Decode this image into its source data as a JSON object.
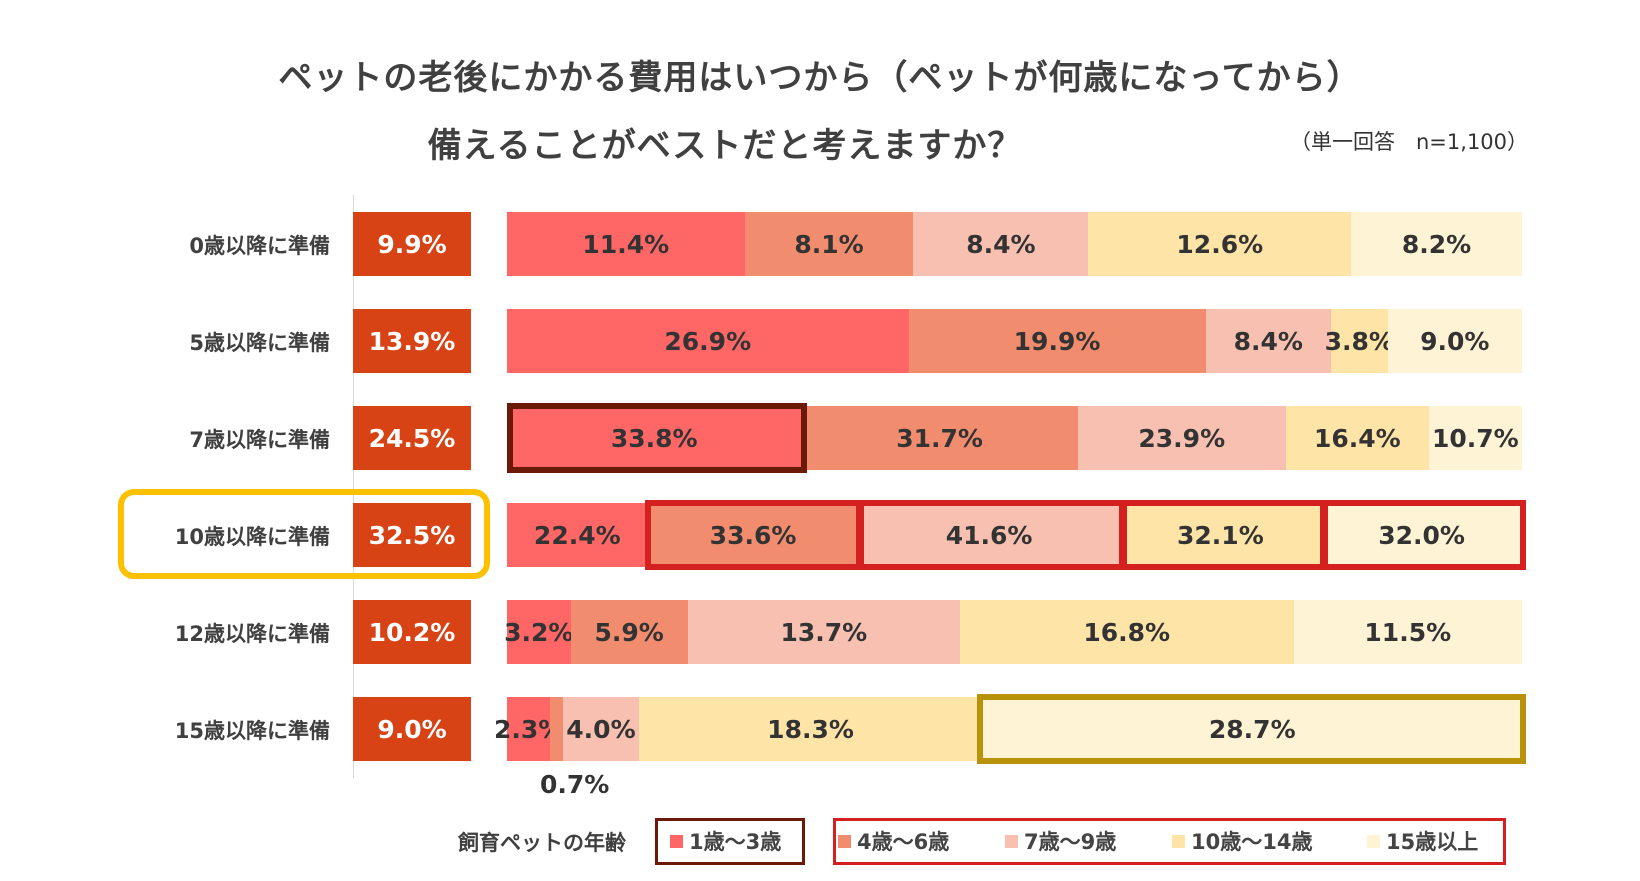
{
  "chart_data": {
    "type": "bar",
    "title_line1": "ペットの老後にかかる費用はいつから（ペットが何歳になってから）",
    "title_line2": "備えることがベストだと考えますか？",
    "note": "（単一回答　n=1,100）",
    "categories": [
      "0歳以降に準備",
      "5歳以降に準備",
      "7歳以降に準備",
      "10歳以降に準備",
      "12歳以降に準備",
      "15歳以降に準備"
    ],
    "overall": {
      "values": [
        9.9,
        13.9,
        24.5,
        32.5,
        10.2,
        9.0
      ],
      "labels": [
        "9.9%",
        "13.9%",
        "24.5%",
        "32.5%",
        "10.2%",
        "9.0%"
      ]
    },
    "legend_title": "飼育ペットの年齢",
    "series": [
      {
        "name": "1歳〜3歳",
        "color": "#FF6666",
        "values": [
          11.4,
          26.9,
          33.8,
          22.4,
          3.2,
          2.3
        ],
        "labels": [
          "11.4%",
          "26.9%",
          "33.8%",
          "22.4%",
          "3.2%",
          "2.3%"
        ]
      },
      {
        "name": "4歳〜6歳",
        "color": "#F28C6E",
        "values": [
          8.1,
          19.9,
          31.7,
          33.6,
          5.9,
          0.7
        ],
        "labels": [
          "8.1%",
          "19.9%",
          "31.7%",
          "33.6%",
          "5.9%",
          "0.7%"
        ]
      },
      {
        "name": "7歳〜9歳",
        "color": "#F8C0B0",
        "values": [
          8.4,
          8.4,
          23.9,
          41.6,
          13.7,
          4.0
        ],
        "labels": [
          "8.4%",
          "8.4%",
          "23.9%",
          "41.6%",
          "13.7%",
          "4.0%"
        ]
      },
      {
        "name": "10歳〜14歳",
        "color": "#FFE4A8",
        "values": [
          12.6,
          3.8,
          16.4,
          32.1,
          16.8,
          18.3
        ],
        "labels": [
          "12.6%",
          "3.8%",
          "16.4%",
          "32.1%",
          "16.8%",
          "18.3%"
        ]
      },
      {
        "name": "15歳以上",
        "color": "#FFF3D6",
        "values": [
          8.2,
          9.0,
          10.7,
          32.0,
          11.5,
          28.7
        ],
        "labels": [
          "8.2%",
          "9.0%",
          "10.7%",
          "32.0%",
          "11.5%",
          "28.7%"
        ]
      }
    ],
    "colors": {
      "overall": "#D84315",
      "highlight_dark": "#6B1A08",
      "highlight_red": "#D52020",
      "highlight_gold": "#B8920A",
      "highlight_yellow": "#FFC000"
    }
  }
}
